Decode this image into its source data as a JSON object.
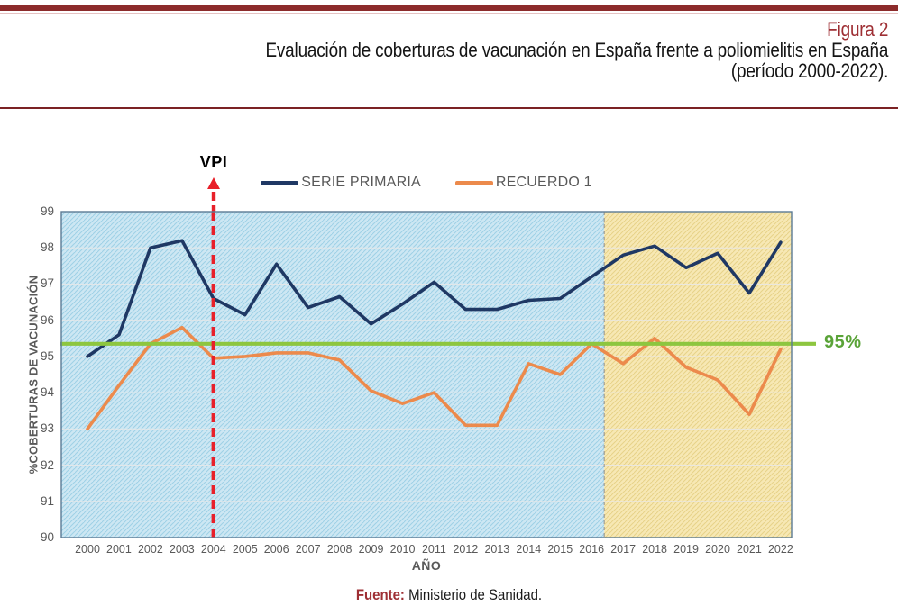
{
  "header": {
    "figure_label": "Figura 2",
    "title_line1": "Evaluación de coberturas de vacunación en España frente a poliomielitis en España",
    "title_line2": "(período 2000-2022).",
    "accent_color": "#8c2b2b",
    "label_color": "#9e2f34"
  },
  "footer": {
    "source_label": "Fuente:",
    "source_text": " Ministerio de Sanidad."
  },
  "chart_data": {
    "type": "line",
    "title": "",
    "xlabel": "AÑO",
    "ylabel": "%COBERTURAS DE VACUNACIÓN",
    "ylim": [
      90,
      99
    ],
    "yticks": [
      90,
      91,
      92,
      93,
      94,
      95,
      96,
      97,
      98,
      99
    ],
    "grid": true,
    "legend_position": "top",
    "x": [
      2000,
      2001,
      2002,
      2003,
      2004,
      2005,
      2006,
      2007,
      2008,
      2009,
      2010,
      2011,
      2012,
      2013,
      2014,
      2015,
      2016,
      2017,
      2018,
      2019,
      2020,
      2021,
      2022
    ],
    "series": [
      {
        "name": "SERIE PRIMARIA",
        "color": "#1f3864",
        "values": [
          95.0,
          95.6,
          98.0,
          98.2,
          96.6,
          96.15,
          97.55,
          96.35,
          96.65,
          95.9,
          96.45,
          97.05,
          96.3,
          96.3,
          96.55,
          96.6,
          97.2,
          97.8,
          98.05,
          97.45,
          97.85,
          96.75,
          98.15
        ]
      },
      {
        "name": "RECUERDO 1",
        "color": "#ec8a4c",
        "values": [
          93.0,
          94.2,
          95.35,
          95.8,
          94.95,
          95.0,
          95.1,
          95.1,
          94.9,
          94.05,
          93.7,
          94.0,
          93.1,
          93.1,
          94.8,
          94.5,
          95.35,
          94.8,
          95.5,
          94.7,
          94.35,
          93.4,
          95.2
        ]
      }
    ],
    "threshold": {
      "label": "95%",
      "value": 95,
      "display_y": 95.35,
      "line_color": "#8dc63f",
      "label_color": "#5aa338"
    },
    "annotation": {
      "label": "VPI",
      "x": 2004,
      "color": "#e8202a"
    },
    "regions": [
      {
        "name": "pre-2016",
        "x_from": 2000,
        "x_to": 2016.4,
        "fill": "#cde7f3",
        "hatch": "#9ed1e6"
      },
      {
        "name": "post-2016",
        "x_from": 2016.4,
        "x_to": 2022,
        "fill": "#f7e8b4",
        "hatch": "#e7d288"
      }
    ]
  }
}
